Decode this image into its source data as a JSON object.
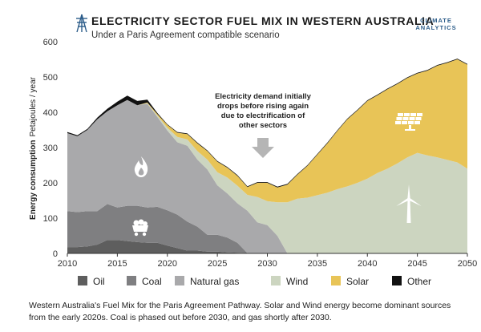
{
  "header": {
    "title": "ELECTRICITY SECTOR FUEL MIX IN WESTERN AUSTRALIA",
    "subtitle": "Under a Paris Agreement compatible scenario",
    "brand_line1": "CLIMATE",
    "brand_line2": "ANALYTICS"
  },
  "annotation": {
    "lines": [
      "Electricity demand initially",
      "drops before rising again",
      "due to electrification of",
      "other sectors"
    ]
  },
  "caption": "Western Australia's Fuel Mix for the Paris Agreement Pathway. Solar and Wind energy become dominant sources from the early 2020s. Coal is phased out before 2030, and gas shortly after 2030.",
  "colors": {
    "oil": "#5e5e5e",
    "coal": "#7f7f81",
    "natural_gas": "#a9a9ab",
    "wind": "#ccd5c0",
    "solar": "#e8c457",
    "other": "#111111",
    "icon": "#ffffff"
  },
  "icons": [
    "flame-icon",
    "coal-cart-icon",
    "solar-panel-icon",
    "wind-turbine-icon"
  ],
  "chart_data": {
    "type": "area",
    "stacked": true,
    "title": "ELECTRICITY SECTOR FUEL MIX IN WESTERN AUSTRALIA",
    "subtitle": "Under a Paris Agreement compatible scenario",
    "ylabel_bold": "Energy consumption",
    "ylabel_unit": "Petajoules / year",
    "xlabel": "",
    "xlim": [
      2010,
      2050
    ],
    "ylim": [
      0,
      600
    ],
    "xticks": [
      2010,
      2015,
      2020,
      2025,
      2030,
      2035,
      2040,
      2045,
      2050
    ],
    "yticks": [
      0,
      100,
      200,
      300,
      400,
      500,
      600
    ],
    "legend_position": "bottom",
    "x": [
      2010,
      2011,
      2012,
      2013,
      2014,
      2015,
      2016,
      2017,
      2018,
      2019,
      2020,
      2021,
      2022,
      2023,
      2024,
      2025,
      2026,
      2027,
      2028,
      2029,
      2030,
      2031,
      2032,
      2033,
      2034,
      2035,
      2036,
      2037,
      2038,
      2039,
      2040,
      2041,
      2042,
      2043,
      2044,
      2045,
      2046,
      2047,
      2048,
      2049,
      2050
    ],
    "series": [
      {
        "name": "Oil",
        "key": "oil",
        "values": [
          18,
          18,
          20,
          25,
          38,
          38,
          35,
          32,
          30,
          30,
          22,
          15,
          8,
          8,
          5,
          5,
          3,
          2,
          1,
          0,
          0,
          0,
          0,
          0,
          0,
          0,
          0,
          0,
          0,
          0,
          0,
          0,
          0,
          0,
          0,
          0,
          0,
          0,
          0,
          0,
          0
        ]
      },
      {
        "name": "Coal",
        "key": "coal",
        "values": [
          102,
          99,
          100,
          95,
          102,
          92,
          100,
          103,
          100,
          102,
          100,
          95,
          82,
          68,
          48,
          48,
          42,
          28,
          0,
          0,
          0,
          0,
          0,
          0,
          0,
          0,
          0,
          0,
          0,
          0,
          0,
          0,
          0,
          0,
          0,
          0,
          0,
          0,
          0,
          0,
          0
        ]
      },
      {
        "name": "Natural gas",
        "key": "natural_gas",
        "values": [
          221,
          215,
          230,
          260,
          263,
          290,
          300,
          285,
          294,
          255,
          226,
          205,
          215,
          190,
          185,
          140,
          125,
          112,
          120,
          88,
          80,
          50,
          0,
          0,
          0,
          0,
          0,
          0,
          0,
          0,
          0,
          0,
          0,
          0,
          0,
          0,
          0,
          0,
          0,
          0,
          0
        ]
      },
      {
        "name": "Wind",
        "key": "wind",
        "values": [
          0,
          0,
          0,
          0,
          0,
          0,
          0,
          0,
          2,
          4,
          8,
          15,
          18,
          24,
          28,
          37,
          45,
          50,
          45,
          72,
          68,
          95,
          145,
          155,
          158,
          165,
          172,
          182,
          190,
          200,
          212,
          228,
          240,
          255,
          272,
          285,
          278,
          272,
          265,
          258,
          240
        ]
      },
      {
        "name": "Solar",
        "key": "solar",
        "values": [
          0,
          0,
          0,
          0,
          0,
          0,
          0,
          0,
          2,
          4,
          8,
          12,
          15,
          22,
          24,
          30,
          28,
          28,
          22,
          40,
          52,
          42,
          50,
          68,
          90,
          115,
          140,
          165,
          190,
          205,
          220,
          220,
          225,
          225,
          225,
          225,
          240,
          260,
          275,
          292,
          295
        ]
      },
      {
        "name": "Other",
        "key": "other",
        "values": [
          3,
          3,
          3,
          5,
          7,
          10,
          12,
          12,
          8,
          3,
          2,
          2,
          2,
          2,
          2,
          2,
          2,
          2,
          2,
          2,
          2,
          2,
          2,
          2,
          2,
          2,
          2,
          2,
          2,
          2,
          2,
          2,
          2,
          2,
          2,
          2,
          2,
          2,
          2,
          2,
          2
        ]
      }
    ]
  }
}
